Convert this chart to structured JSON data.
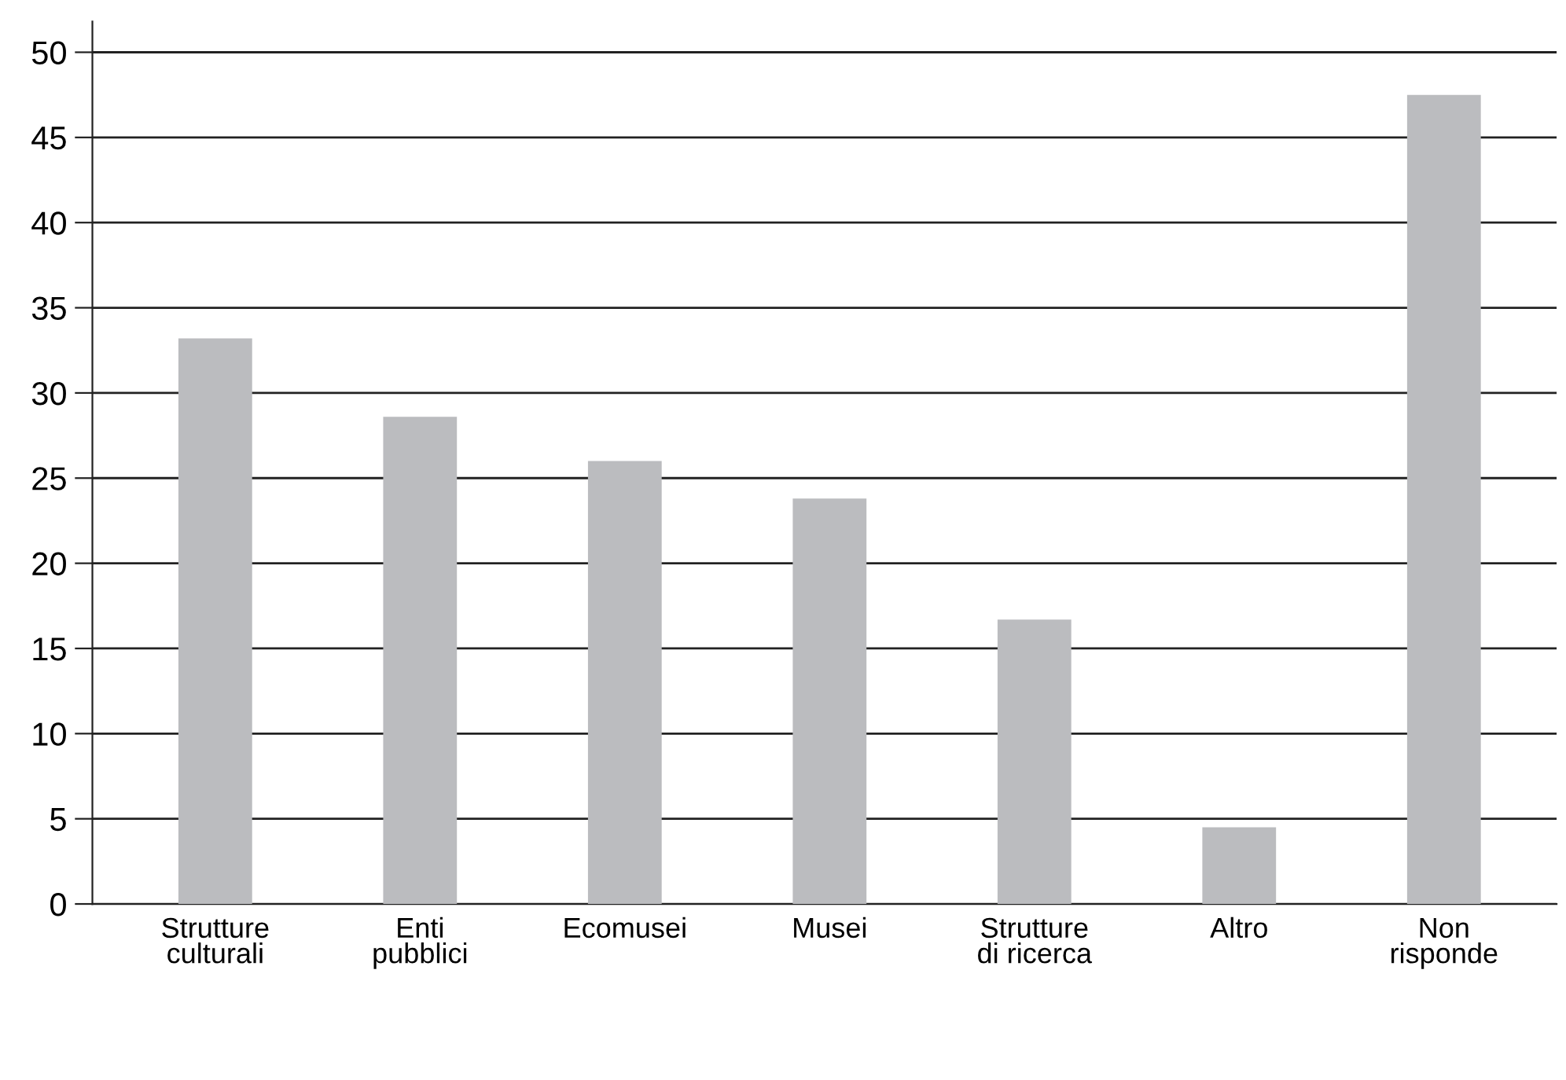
{
  "chart_data": {
    "type": "bar",
    "categories": [
      "Strutture\nculturali",
      "Enti\npubblici",
      "Ecomusei",
      "Musei",
      "Strutture\ndi ricerca",
      "Altro",
      "Non\nrisponde"
    ],
    "values": [
      33.2,
      28.6,
      26.0,
      23.8,
      16.7,
      4.5,
      47.5
    ],
    "color": "#bbbcbf",
    "ylim": [
      0,
      51.8
    ],
    "yticks": [
      0,
      5,
      10,
      15,
      20,
      25,
      30,
      35,
      40,
      45,
      50
    ],
    "grid": "y"
  }
}
